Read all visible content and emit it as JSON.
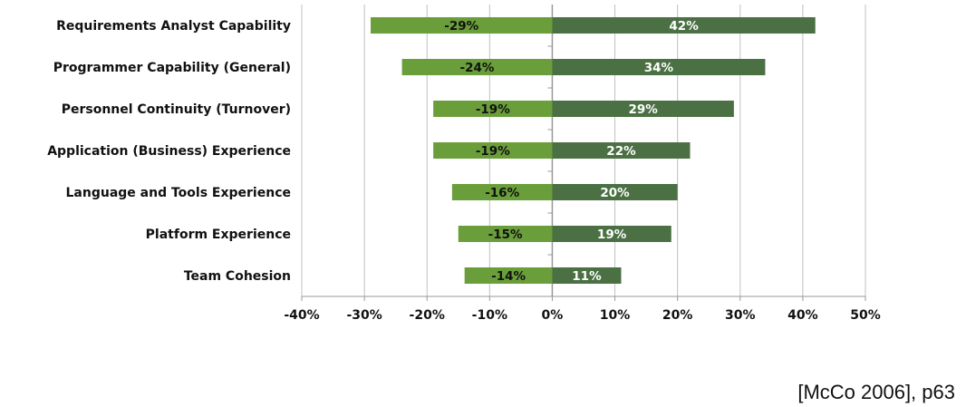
{
  "chart_data": {
    "type": "bar",
    "orientation": "horizontal",
    "stacked": "diverging",
    "categories": [
      "Requirements Analyst Capability",
      "Programmer Capability (General)",
      "Personnel Continuity (Turnover)",
      "Application (Business) Experience",
      "Language and Tools Experience",
      "Platform Experience",
      "Team Cohesion"
    ],
    "series": [
      {
        "values": [
          -29,
          -24,
          -19,
          -19,
          -16,
          -15,
          -14
        ],
        "labels": [
          "-29%",
          "-24%",
          "-19%",
          "-19%",
          "-16%",
          "-15%",
          "-14%"
        ],
        "color": "#6a9e3a",
        "label_color": "#111111"
      },
      {
        "values": [
          42,
          34,
          29,
          22,
          20,
          19,
          11
        ],
        "labels": [
          "42%",
          "34%",
          "29%",
          "22%",
          "20%",
          "19%",
          "11%"
        ],
        "color": "#4a7043",
        "label_color": "#ffffff"
      }
    ],
    "xlim": [
      -40,
      50
    ],
    "xticks": [
      -40,
      -30,
      -20,
      -10,
      0,
      10,
      20,
      30,
      40,
      50
    ],
    "xtick_labels": [
      "-40%",
      "-30%",
      "-20%",
      "-10%",
      "0%",
      "10%",
      "20%",
      "30%",
      "40%",
      "50%"
    ],
    "grid": "vertical",
    "grid_color": "#c0c0c0",
    "title": "",
    "xlabel": "",
    "ylabel": ""
  },
  "citation": "[McCo 2006], p63"
}
